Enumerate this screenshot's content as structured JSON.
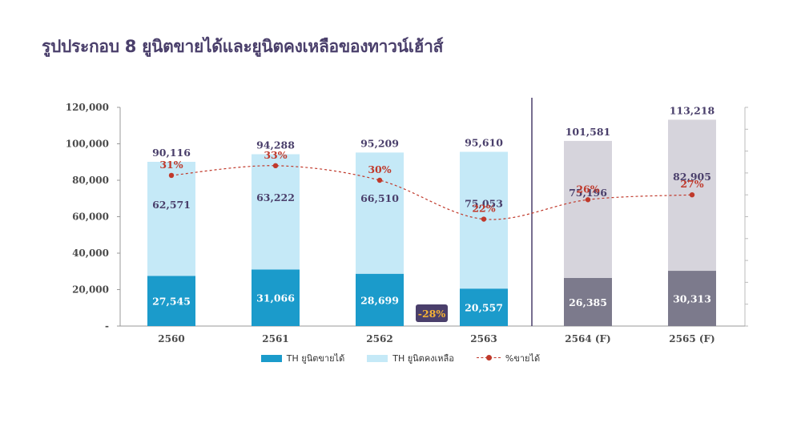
{
  "title": "รูปประกอบ 8 ยูนิตขายได้และยูนิตคงเหลือของทาวน์เฮ้าส์",
  "chart_data": {
    "type": "bar",
    "stacked": true,
    "categories": [
      "2560",
      "2561",
      "2562",
      "2563",
      "2564 (F)",
      "2565 (F)"
    ],
    "series": [
      {
        "name": "TH ยูนิตขายได้",
        "values": [
          27545,
          31066,
          28699,
          20557,
          26385,
          30313
        ],
        "labels": [
          "27,545",
          "31,066",
          "28,699",
          "20,557",
          "26,385",
          "30,313"
        ],
        "color": "#1b9bcb",
        "forecast_color": "#7c7a8c"
      },
      {
        "name": "TH ยูนิตคงเหลือ",
        "values": [
          62571,
          63222,
          66510,
          75053,
          75196,
          82905
        ],
        "labels": [
          "62,571",
          "63,222",
          "66,510",
          "75,053",
          "75,196",
          "82,905"
        ],
        "color": "#c5e9f7",
        "forecast_color": "#d6d4dc"
      }
    ],
    "totals": [
      90116,
      94288,
      95209,
      95610,
      101581,
      113218
    ],
    "total_labels": [
      "90,116",
      "94,288",
      "95,209",
      "95,610",
      "101,581",
      "113,218"
    ],
    "line": {
      "name": "%ขายได้",
      "values": [
        31,
        33,
        30,
        22,
        26,
        27
      ],
      "labels": [
        "31%",
        "33%",
        "30%",
        "22%",
        "26%",
        "27%"
      ],
      "color": "#c0392b"
    },
    "forecast_start_index": 4,
    "ylim": [
      0,
      120000
    ],
    "yticks": [
      0,
      20000,
      40000,
      60000,
      80000,
      100000,
      120000
    ],
    "ytick_labels": [
      "-",
      "20,000",
      "40,000",
      "60,000",
      "80,000",
      "100,000",
      "120,000"
    ],
    "annotation": {
      "text": "-28%",
      "color": "#f5b335",
      "background": "#4a3f6b"
    },
    "xlabel": "",
    "ylabel": "",
    "grid": false,
    "legend_position": "bottom"
  }
}
